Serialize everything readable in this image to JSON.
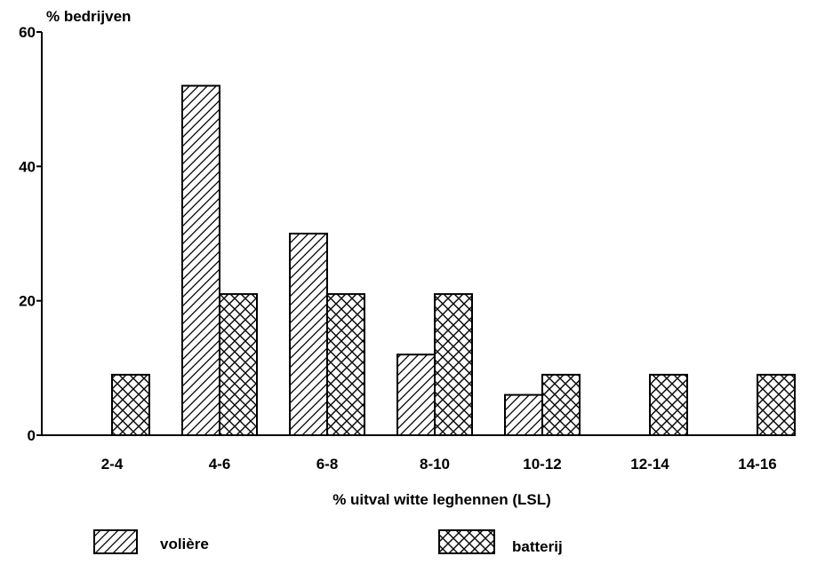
{
  "chart_data": {
    "type": "bar",
    "ylabel": "% bedrijven",
    "xlabel": "% uitval witte leghennen (LSL)",
    "categories": [
      "2-4",
      "4-6",
      "6-8",
      "8-10",
      "10-12",
      "12-14",
      "14-16"
    ],
    "series": [
      {
        "name": "volière",
        "pattern": "diagonal-hatch",
        "values": [
          0,
          52,
          30,
          12,
          6,
          0,
          0
        ]
      },
      {
        "name": "batterij",
        "pattern": "cross-hatch",
        "values": [
          9,
          21,
          21,
          21,
          9,
          9,
          9
        ]
      }
    ],
    "ylim": [
      0,
      60
    ],
    "yticks": [
      0,
      20,
      40,
      60
    ],
    "grid": false,
    "legend_position": "bottom",
    "colors": {
      "ink": "#000000",
      "fill": "#ffffff"
    }
  }
}
